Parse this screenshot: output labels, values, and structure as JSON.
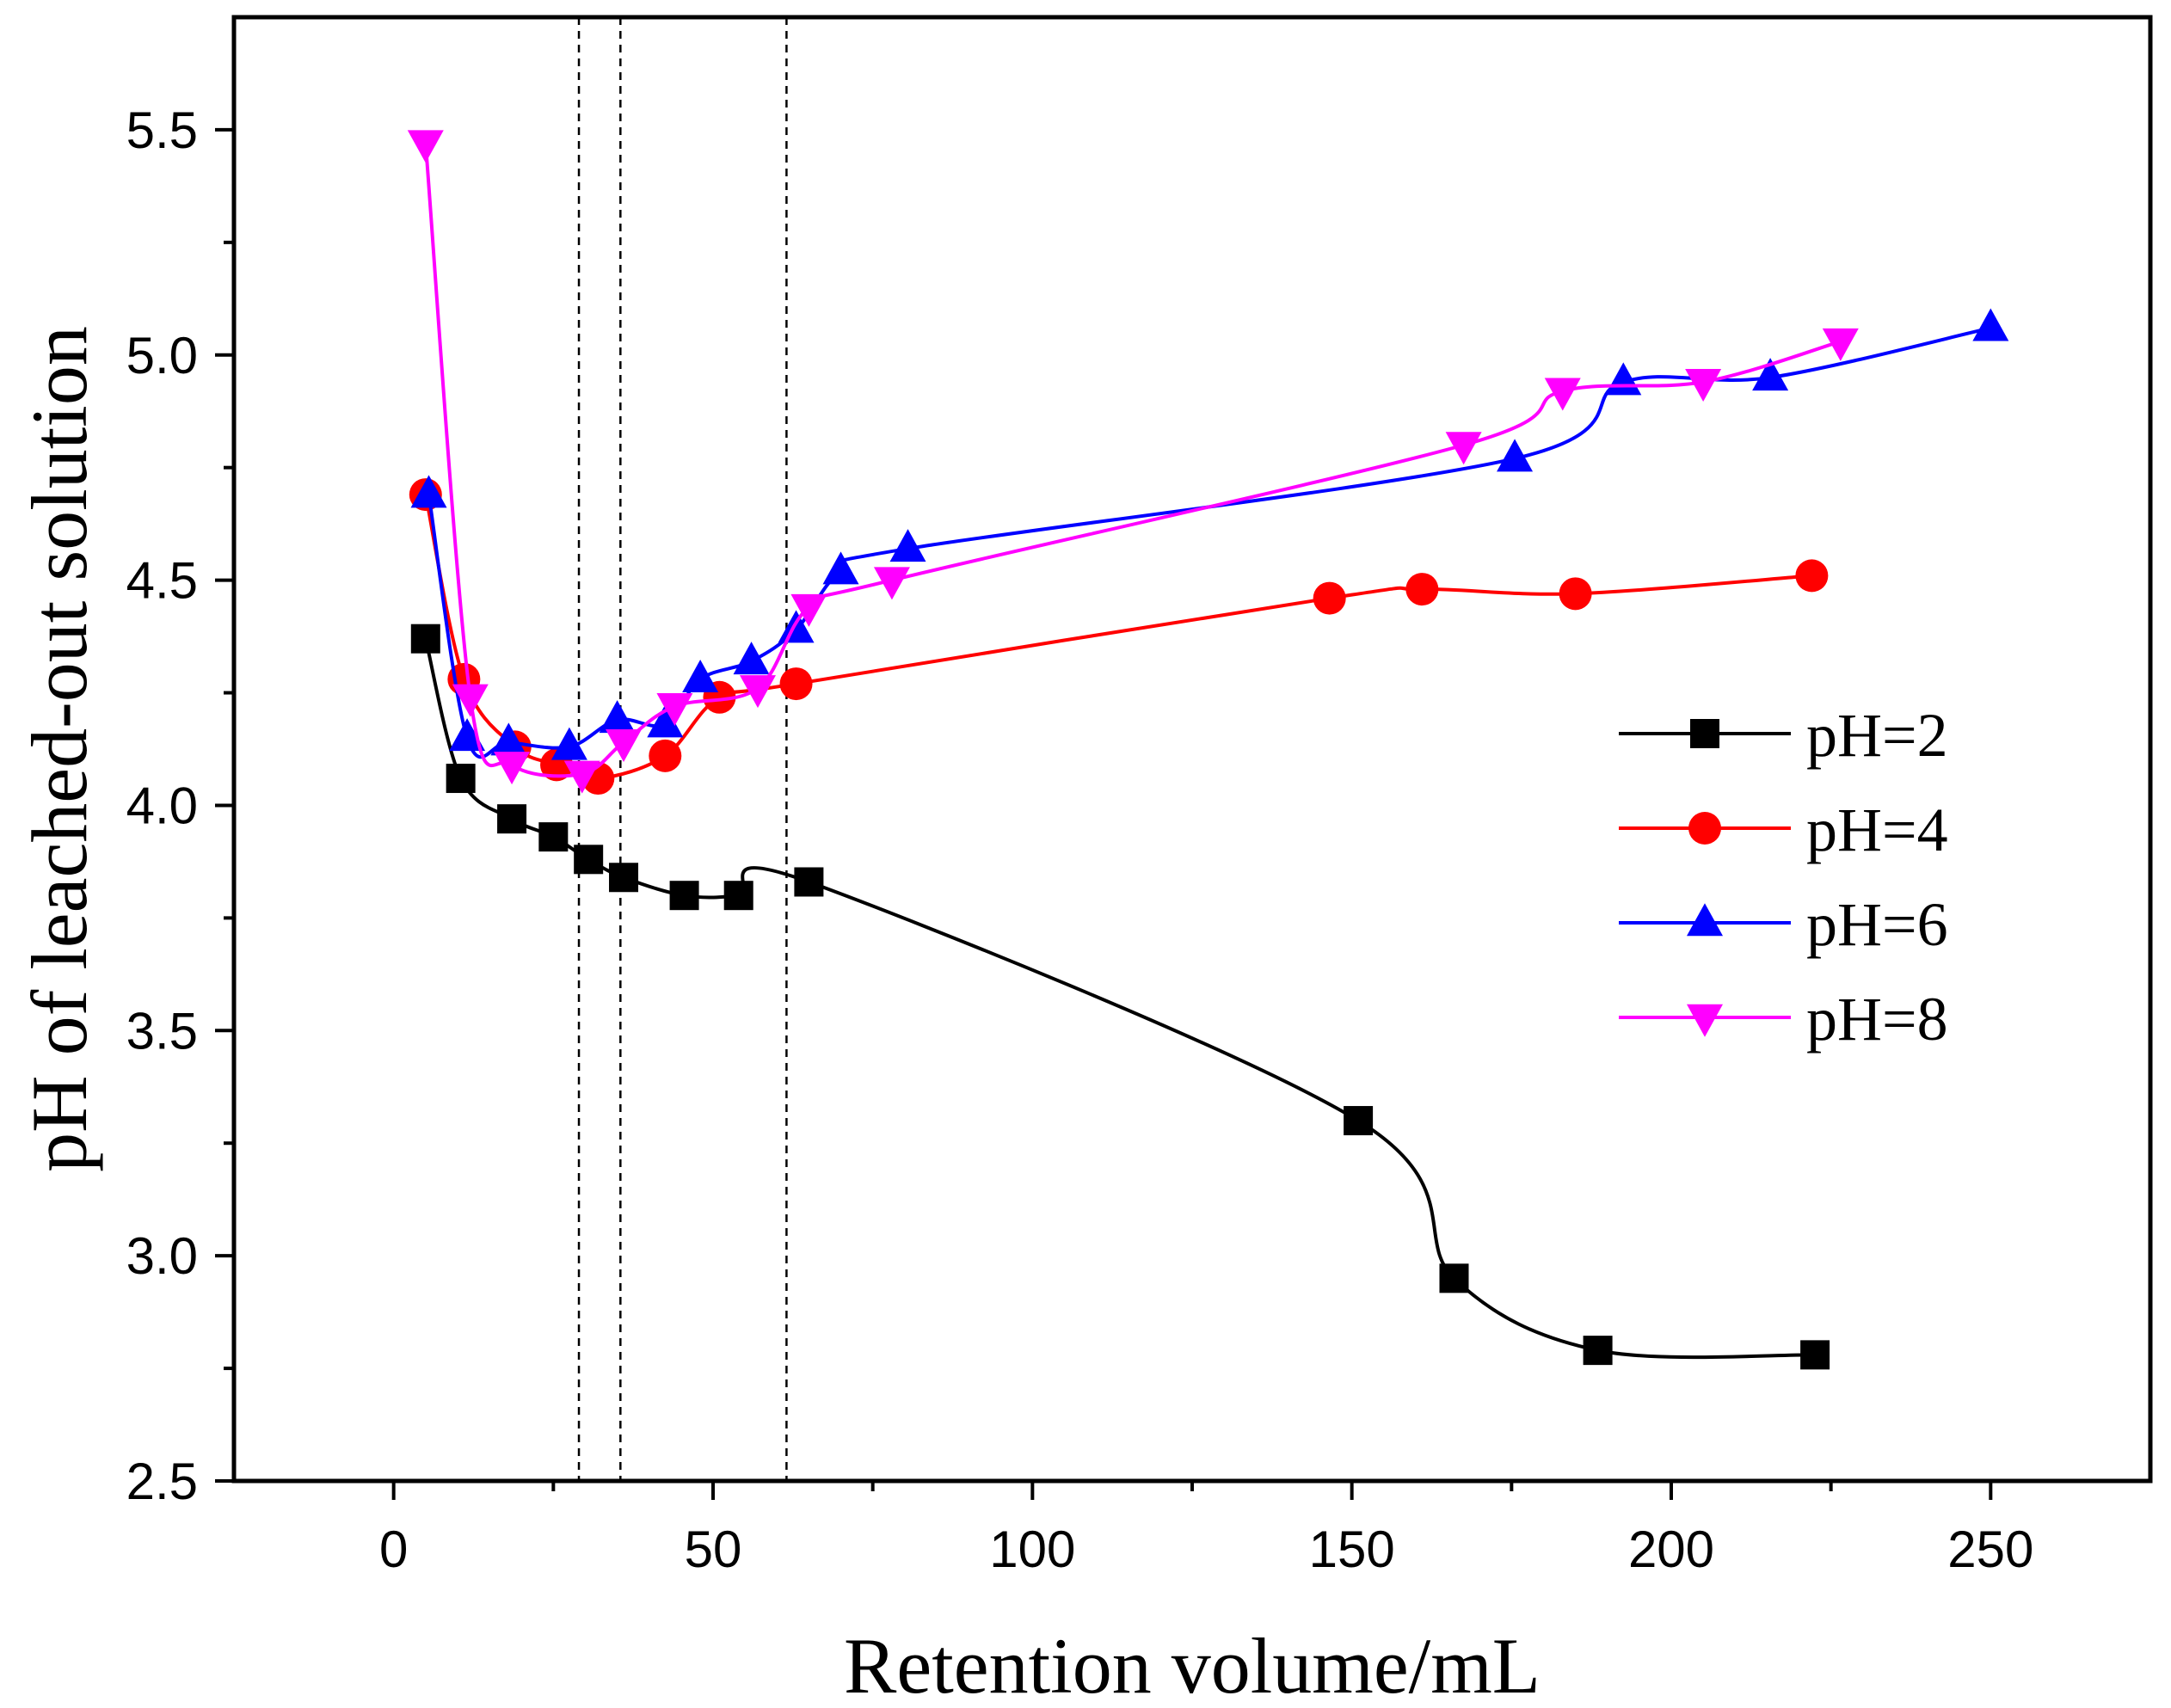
{
  "chart_data": {
    "type": "line",
    "xlabel": "Retention volume/mL",
    "ylabel": "pH of leached-out solution",
    "xlim": [
      -25,
      275
    ],
    "ylim": [
      2.5,
      5.75
    ],
    "xticks": [
      0,
      50,
      100,
      150,
      200,
      250
    ],
    "yticks": [
      2.5,
      3.0,
      3.5,
      4.0,
      4.5,
      5.0,
      5.5
    ],
    "xtick_labels": [
      "0",
      "50",
      "100",
      "150",
      "200",
      "250"
    ],
    "ytick_labels": [
      "2.5",
      "3.0",
      "3.5",
      "4.0",
      "4.5",
      "5.0",
      "5.5"
    ],
    "reference_lines_x": [
      29,
      35.5,
      61.5
    ],
    "legend_position": "center-right",
    "series": [
      {
        "name": "pH=2",
        "color": "#000000",
        "marker": "square",
        "x": [
          5,
          10.5,
          18.5,
          25,
          30.5,
          36,
          45.5,
          54,
          65,
          151,
          166,
          188.5,
          222.5
        ],
        "y": [
          4.37,
          4.06,
          3.97,
          3.93,
          3.88,
          3.84,
          3.8,
          3.8,
          3.83,
          3.3,
          2.95,
          2.79,
          2.78
        ]
      },
      {
        "name": "pH=4",
        "color": "#ff0000",
        "marker": "circle",
        "x": [
          5,
          11,
          19,
          25.5,
          32,
          42.5,
          51,
          63,
          146.5,
          161,
          185,
          222
        ],
        "y": [
          4.69,
          4.28,
          4.13,
          4.09,
          4.06,
          4.11,
          4.24,
          4.27,
          4.46,
          4.48,
          4.47,
          4.51
        ]
      },
      {
        "name": "pH=6",
        "color": "#0000ff",
        "marker": "triangle-up",
        "x": [
          5.5,
          11.5,
          18,
          27.5,
          35,
          42.5,
          48,
          56,
          63,
          70,
          80.5,
          175.5,
          192.5,
          215.5,
          250
        ],
        "y": [
          4.69,
          4.15,
          4.14,
          4.13,
          4.19,
          4.18,
          4.28,
          4.32,
          4.39,
          4.52,
          4.57,
          4.77,
          4.94,
          4.95,
          5.06
        ]
      },
      {
        "name": "pH=8",
        "color": "#ff00ff",
        "marker": "triangle-down",
        "x": [
          5,
          12,
          18.5,
          29.5,
          36,
          44,
          57,
          65,
          78,
          167.5,
          183,
          205,
          226.5
        ],
        "y": [
          5.47,
          4.24,
          4.09,
          4.07,
          4.14,
          4.22,
          4.26,
          4.44,
          4.5,
          4.8,
          4.92,
          4.94,
          5.03
        ]
      }
    ]
  }
}
